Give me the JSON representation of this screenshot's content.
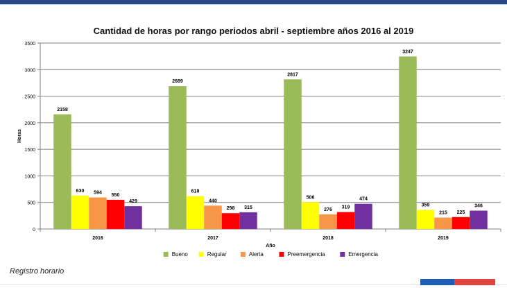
{
  "caption": "Registro horario",
  "chart_data": {
    "type": "bar",
    "title": "Cantidad de horas por rango periodos abril - septiembre años 2016 al 2019",
    "xlabel": "Año",
    "ylabel": "Horas",
    "ylim": [
      0,
      3500
    ],
    "yticks": [
      0,
      500,
      1000,
      1500,
      2000,
      2500,
      3000,
      3500
    ],
    "grid": true,
    "legend": "bottom",
    "categories": [
      "2016",
      "2017",
      "2018",
      "2019"
    ],
    "series": [
      {
        "name": "Bueno",
        "color": "#9bbb59",
        "values": [
          2158,
          2689,
          2817,
          3247
        ]
      },
      {
        "name": "Regular",
        "color": "#ffff00",
        "values": [
          630,
          618,
          506,
          359
        ]
      },
      {
        "name": "Alerta",
        "color": "#f79646",
        "values": [
          594,
          440,
          276,
          215
        ]
      },
      {
        "name": "Preemergencia",
        "color": "#ff0000",
        "values": [
          550,
          298,
          319,
          225
        ]
      },
      {
        "name": "Emergencia",
        "color": "#7030a0",
        "values": [
          429,
          315,
          474,
          346
        ]
      }
    ]
  }
}
